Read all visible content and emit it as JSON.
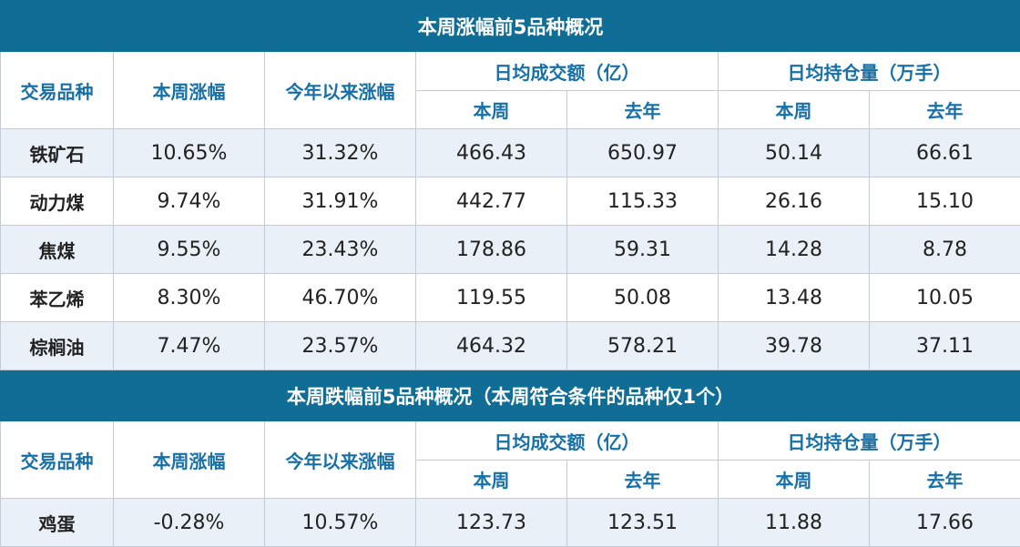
{
  "table1": {
    "title": "本周涨幅前5品种概况",
    "headers": {
      "variety": "交易品种",
      "weekly_change": "本周涨幅",
      "ytd_change": "今年以来涨幅",
      "avg_turnover": "日均成交额（亿）",
      "avg_open_interest": "日均持仓量（万手）",
      "this_week": "本周",
      "last_year": "去年"
    },
    "rows": [
      {
        "name": "铁矿石",
        "weekly": "10.65%",
        "ytd": "31.32%",
        "turnover_week": "466.43",
        "turnover_last_year": "650.97",
        "oi_week": "50.14",
        "oi_last_year": "66.61"
      },
      {
        "name": "动力煤",
        "weekly": "9.74%",
        "ytd": "31.91%",
        "turnover_week": "442.77",
        "turnover_last_year": "115.33",
        "oi_week": "26.16",
        "oi_last_year": "15.10"
      },
      {
        "name": "焦煤",
        "weekly": "9.55%",
        "ytd": "23.43%",
        "turnover_week": "178.86",
        "turnover_last_year": "59.31",
        "oi_week": "14.28",
        "oi_last_year": "8.78"
      },
      {
        "name": "苯乙烯",
        "weekly": "8.30%",
        "ytd": "46.70%",
        "turnover_week": "119.55",
        "turnover_last_year": "50.08",
        "oi_week": "13.48",
        "oi_last_year": "10.05"
      },
      {
        "name": "棕榈油",
        "weekly": "7.47%",
        "ytd": "23.57%",
        "turnover_week": "464.32",
        "turnover_last_year": "578.21",
        "oi_week": "39.78",
        "oi_last_year": "37.11"
      }
    ]
  },
  "table2": {
    "title": "本周跌幅前5品种概况（本周符合条件的品种仅1个）",
    "headers": {
      "variety": "交易品种",
      "weekly_change": "本周涨幅",
      "ytd_change": "今年以来涨幅",
      "avg_turnover": "日均成交额（亿）",
      "avg_open_interest": "日均持仓量（万手）",
      "this_week": "本周",
      "last_year": "去年"
    },
    "rows": [
      {
        "name": "鸡蛋",
        "weekly": "-0.28%",
        "ytd": "10.57%",
        "turnover_week": "123.73",
        "turnover_last_year": "123.51",
        "oi_week": "11.88",
        "oi_last_year": "17.66"
      }
    ]
  },
  "colors": {
    "title_bg": "#0f6d96",
    "header_text": "#1670a8",
    "alt_row_bg": "#eaf0f7"
  }
}
